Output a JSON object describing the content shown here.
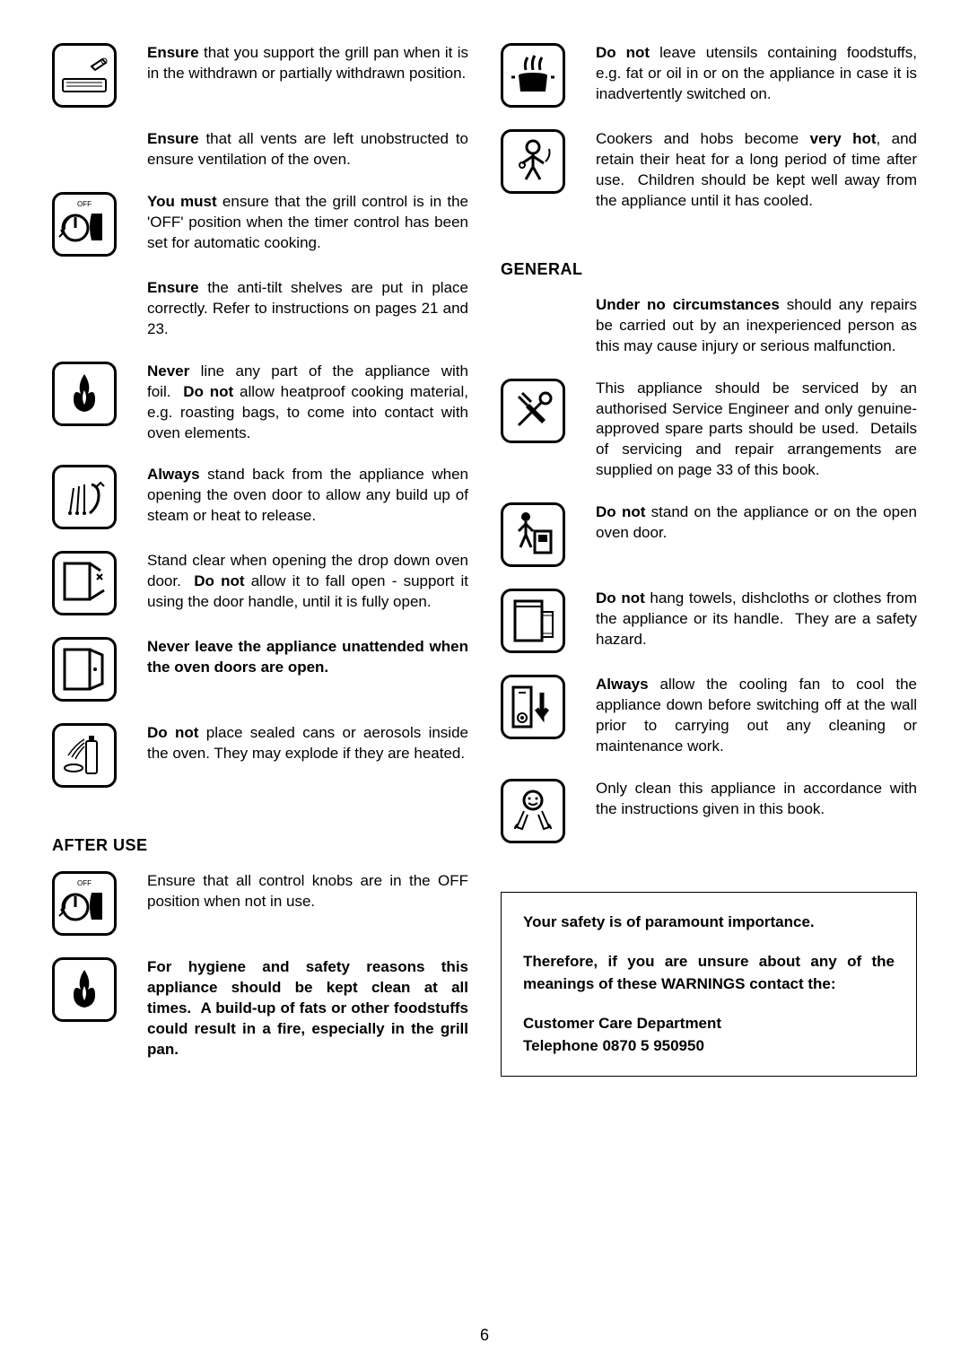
{
  "page_number": "6",
  "left_column": {
    "items": [
      {
        "icon": "grill-pan",
        "html": "<b>Ensure</b> that you support the grill pan when it is in the withdrawn or partially withdrawn position."
      },
      {
        "icon": "",
        "html": "<b>Ensure</b> that all vents are left unobstructed to ensure ventilation of the oven."
      },
      {
        "icon": "off-knob",
        "html": "<b>You must</b> ensure that the grill control is in the 'OFF' position when the timer control has been set for automatic cooking."
      },
      {
        "icon": "",
        "html": "<b>Ensure</b> the anti-tilt shelves are put in place correctly. Refer to instructions on pages 21 and 23."
      },
      {
        "icon": "fire",
        "html": "<b>Never</b> line any part of the appliance with foil.&nbsp;&nbsp;<b>Do not</b> allow heatproof cooking material, e.g. roasting bags, to come into contact with oven elements."
      },
      {
        "icon": "steam",
        "html": "<b>Always</b> stand back from the appliance when opening the oven door to allow any build up of steam or heat to release."
      },
      {
        "icon": "door-drop",
        "html": "Stand clear when opening the drop down oven door.&nbsp;&nbsp;<b>Do not</b> allow it to fall open - support it using the door handle, until it is fully open."
      },
      {
        "icon": "door-open",
        "html": "<b>Never leave the appliance unattended when the oven doors are open.</b>"
      },
      {
        "icon": "aerosol",
        "html": "<b>Do not</b> place sealed cans or aerosols inside the oven. They may explode if they are heated."
      }
    ],
    "after_use_heading": "AFTER USE",
    "after_use_items": [
      {
        "icon": "off-knob",
        "html": "Ensure that all control knobs are in the OFF position when not in use."
      },
      {
        "icon": "fire",
        "html": "<b>For hygiene and safety reasons this appliance should be kept clean at all times.&nbsp;&nbsp;A build-up of fats or other foodstuffs could result in a fire, especially in the grill pan.</b>"
      }
    ]
  },
  "right_column": {
    "items": [
      {
        "icon": "pot-fire",
        "html": "<b>Do not</b> leave utensils containing foodstuffs, e.g. fat or oil in or on the appliance in case it is inadvertently switched on."
      },
      {
        "icon": "child",
        "html": "Cookers and hobs become <b>very hot</b>, and retain their heat for a long period of time after use.&nbsp;&nbsp;Children should be kept well away from the appliance until it has cooled."
      }
    ],
    "general_heading": "GENERAL",
    "general_items": [
      {
        "icon": "",
        "html": "<b>Under no circumstances</b> should any repairs be carried out by an inexperienced person as this may cause injury or serious malfunction."
      },
      {
        "icon": "tools",
        "html": "This appliance should be serviced by an authorised Service Engineer and only genuine-approved spare parts should be used.&nbsp;&nbsp;Details of servicing and repair arrangements are supplied on page 33 of this book."
      },
      {
        "icon": "person-stand",
        "html": "<b>Do not</b> stand on the appliance or on the open oven door."
      },
      {
        "icon": "towel",
        "html": "<b>Do not</b> hang towels, dishcloths or clothes from the appliance or its handle.&nbsp;&nbsp;They are a safety hazard."
      },
      {
        "icon": "cooling",
        "html": "<b>Always</b> allow the cooling fan to cool the appliance down before switching off at the wall prior to carrying out any cleaning or maintenance work."
      },
      {
        "icon": "clean",
        "html": "Only clean this appliance in accordance with the instructions given in this book."
      }
    ],
    "safety_box": {
      "p1": "Your safety is of paramount importance.",
      "p2": "Therefore, if you are unsure about any of the meanings of these WARNINGS contact the:",
      "p3": "Customer Care Department",
      "p4": "Telephone 0870 5 950950"
    }
  },
  "icons": {
    "grill-pan": "<rect x='6' y='34' width='48' height='14' rx='2' fill='none' stroke='#000' stroke-width='2'/><line x1='10' y1='38' x2='50' y2='38' stroke='#000' stroke-width='1'/><line x1='10' y1='42' x2='50' y2='42' stroke='#000' stroke-width='1'/><path d='M38 20 L50 12 L54 16 L42 24 Z' fill='none' stroke='#000' stroke-width='2'/><circle cx='52' cy='14' r='3' fill='none' stroke='#000' stroke-width='1'/>",
    "off-knob": "<text x='30' y='10' font-size='8' text-anchor='middle' font-family='Arial'>OFF</text><circle cx='20' cy='34' r='14' fill='none' stroke='#000' stroke-width='3'/><path d='M20 22 L20 34' stroke='#000' stroke-width='3'/><path d='M8 36 A14 14 0 0 1 20 20' fill='none' stroke='#000' stroke-width='2'/><path d='M6 40 L2 44 M6 40 L4 36 M6 40 L10 42' stroke='#000' stroke-width='2' fill='none'/><path d='M38 18 L50 18 L50 48 L38 48' fill='#000'/><path d='M38 18 Q34 33 38 48' fill='#000'/>",
    "fire": "<path d='M30 8 Q22 20 26 30 Q18 24 18 36 Q18 48 30 50 Q42 48 42 36 Q42 24 34 30 Q38 20 30 8 Z' fill='#000'/><path d='M30 26 Q26 34 30 42 Q34 34 30 26 Z' fill='#fff'/>",
    "steam": "<path d='M14 48 L18 20 M22 48 L24 18 M30 48 L30 16' stroke='#000' stroke-width='2'/><circle cx='14' cy='48' r='2' fill='#000'/><circle cx='22' cy='48' r='2' fill='#000'/><circle cx='30' cy='48' r='2' fill='#000'/><path d='M36 48 Q46 40 46 28 Q46 18 38 16' fill='none' stroke='#000' stroke-width='3'/><path d='M42 20 L48 14 L52 18' stroke='#000' stroke-width='2' fill='none'/>",
    "door-drop": "<rect x='8' y='8' width='28' height='40' fill='none' stroke='#000' stroke-width='3'/><path d='M36 48 L52 38' stroke='#000' stroke-width='3'/><path d='M36 8 L48 16' stroke='#000' stroke-width='3'/><line x1='44' y1='20' x2='50' y2='26' stroke='#000' stroke-width='2'/><line x1='50' y1='20' x2='44' y2='26' stroke='#000' stroke-width='2'/>",
    "door-open": "<rect x='8' y='8' width='28' height='44' fill='none' stroke='#000' stroke-width='3'/><path d='M36 8 L50 14 L50 46 L36 52' fill='none' stroke='#000' stroke-width='3'/><circle cx='42' cy='30' r='2' fill='#000'/>",
    "aerosol": "<rect x='32' y='14' width='12' height='36' rx='2' fill='none' stroke='#000' stroke-width='2'/><rect x='35' y='8' width='6' height='6' fill='#000'/><path d='M30 12 Q20 18 12 30 M30 16 Q22 22 16 32 M30 20 Q24 26 20 34' stroke='#000' stroke-width='1.5' fill='none'/><ellipse cx='18' cy='44' rx='10' ry='4' fill='none' stroke='#000' stroke-width='2'/>",
    "pot-fire": "<path d='M14 30 L46 30 L44 48 L16 48 Z' fill='#000'/><ellipse cx='30' cy='30' rx='16' ry='3' fill='#000'/><path d='M22 24 Q20 16 24 10 M30 24 Q28 14 32 8 M38 24 Q36 16 40 10' stroke='#000' stroke-width='3' fill='none'/><line x1='10' y1='32' x2='6' y2='32' stroke='#000' stroke-width='3'/><line x1='50' y1='32' x2='54' y2='32' stroke='#000' stroke-width='3'/>",
    "child": "<circle cx='30' cy='14' r='7' fill='none' stroke='#000' stroke-width='3'/><path d='M30 21 L30 36 M30 24 L18 32 M30 24 L42 32 M30 36 L22 50 M30 36 L38 50' stroke='#000' stroke-width='3' fill='none'/><circle cx='18' cy='34' r='3' fill='none' stroke='#000' stroke-width='2'/><path d='M44 30 Q50 24 48 16' stroke='#000' stroke-width='2' fill='none'/>",
    "tools": "<path d='M14 14 L24 24 M18 10 L28 20' stroke='#000' stroke-width='3'/><path d='M26 22 L44 40 L40 44 L22 26 Z' fill='#000'/><circle cx='44' cy='16' r='6' fill='none' stroke='#000' stroke-width='3'/><path d='M40 20 L18 42 L14 46 L18 42' stroke='#000' stroke-width='3' fill='none'/>",
    "person-stand": "<circle cx='22' cy='10' r='5' fill='#000'/><path d='M22 15 L22 30 L16 44 M22 30 L28 44 M22 18 L14 26 M22 18 L30 26' stroke='#000' stroke-width='3' fill='none'/><rect x='32' y='26' width='18' height='24' fill='none' stroke='#000' stroke-width='3'/><rect x='36' y='30' width='10' height='8' fill='#000'/>",
    "towel": "<rect x='10' y='8' width='30' height='44' fill='none' stroke='#000' stroke-width='3'/><line x1='10' y1='14' x2='40' y2='14' stroke='#000' stroke-width='2'/><rect x='40' y='20' width='12' height='28' fill='none' stroke='#000' stroke-width='2'/><line x1='40' y1='24' x2='52' y2='24' stroke='#000' stroke-width='1'/><line x1='40' y1='44' x2='52' y2='44' stroke='#000' stroke-width='1'/>",
    "cooling": "<rect x='8' y='8' width='20' height='44' fill='none' stroke='#000' stroke-width='3'/><circle cx='18' cy='42' r='5' fill='none' stroke='#000' stroke-width='2'/><circle cx='18' cy='42' r='2' fill='#000'/><line x1='14' y1='14' x2='22' y2='14' stroke='#000' stroke-width='2'/><path d='M40 14 L40 40 L34 32 M40 40 L46 32' stroke='#000' stroke-width='5' fill='none'/>",
    "clean": "<circle cx='30' cy='18' r='10' fill='none' stroke='#000' stroke-width='3'/><circle cx='26' cy='16' r='1.5' fill='#000'/><circle cx='34' cy='16' r='1.5' fill='#000'/><path d='M25 21 Q30 25 35 21' stroke='#000' stroke-width='2' fill='none'/><path d='M20 30 L12 48 L18 50 L24 34' fill='none' stroke='#000' stroke-width='2'/><path d='M40 30 L48 48 L42 50 L36 34' fill='none' stroke='#000' stroke-width='2'/><path d='M14 44 Q10 46 10 50 M46 44 Q50 46 50 50' stroke='#000' stroke-width='2' fill='none'/>"
  }
}
